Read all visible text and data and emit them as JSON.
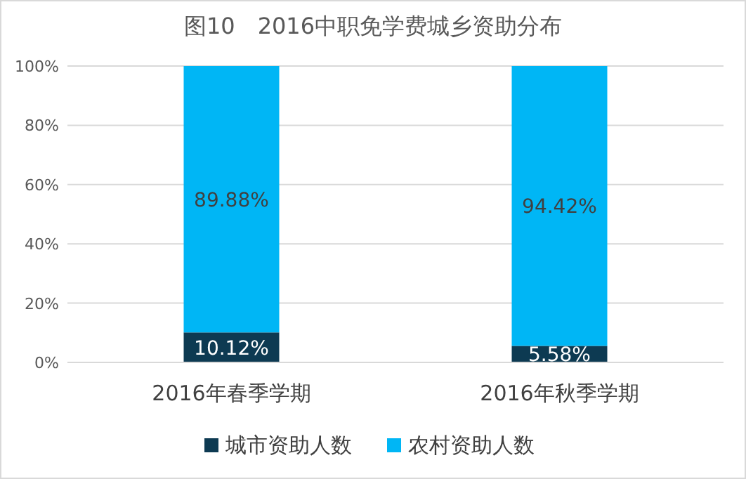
{
  "chart_data": {
    "type": "bar",
    "title": "图10　2016中职免学费城乡资助分布",
    "categories": [
      "2016年春季学期",
      "2016年秋季学期"
    ],
    "stacked": true,
    "ylim": [
      0,
      100
    ],
    "yticks": [
      {
        "value": 0,
        "label": "0%"
      },
      {
        "value": 20,
        "label": "20%"
      },
      {
        "value": 40,
        "label": "40%"
      },
      {
        "value": 60,
        "label": "60%"
      },
      {
        "value": 80,
        "label": "80%"
      },
      {
        "value": 100,
        "label": "100%"
      }
    ],
    "grid": "y",
    "legend": "bottom",
    "series": [
      {
        "name": "城市资助人数",
        "color": "#0d3a52",
        "values": [
          10.12,
          5.58
        ],
        "value_labels": [
          "10.12%",
          "5.58%"
        ]
      },
      {
        "name": "农村资助人数",
        "color": "#00b6f5",
        "values": [
          89.88,
          94.42
        ],
        "value_labels": [
          "89.88%",
          "94.42%"
        ]
      }
    ]
  }
}
